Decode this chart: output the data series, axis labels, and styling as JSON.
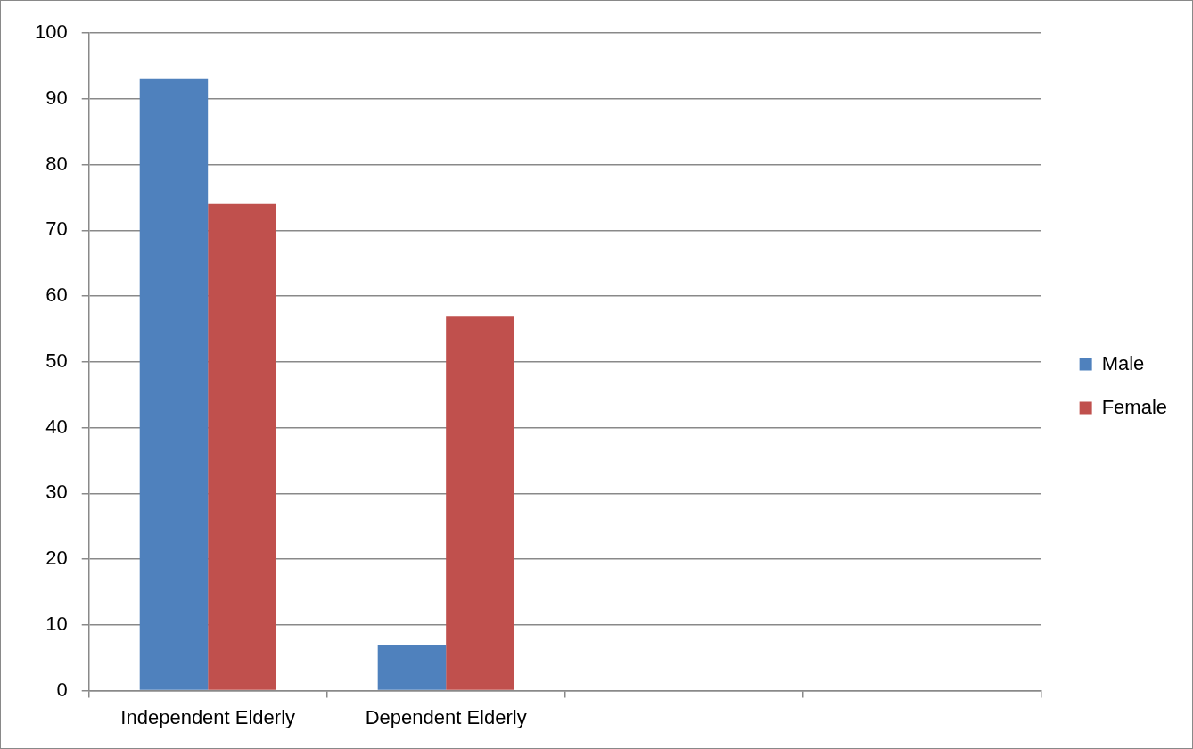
{
  "chart_data": {
    "type": "bar",
    "categories": [
      "Independent Elderly",
      "Dependent Elderly",
      null,
      null
    ],
    "series": [
      {
        "name": "Male",
        "color": "#4f81bd",
        "values": [
          93,
          7,
          null,
          null
        ]
      },
      {
        "name": "Female",
        "color": "#c0504d",
        "values": [
          74,
          57,
          null,
          null
        ]
      }
    ],
    "ylim": [
      0,
      100
    ],
    "yticks": [
      0,
      10,
      20,
      30,
      40,
      50,
      60,
      70,
      80,
      90,
      100
    ],
    "grid": "y",
    "legend": "right"
  }
}
